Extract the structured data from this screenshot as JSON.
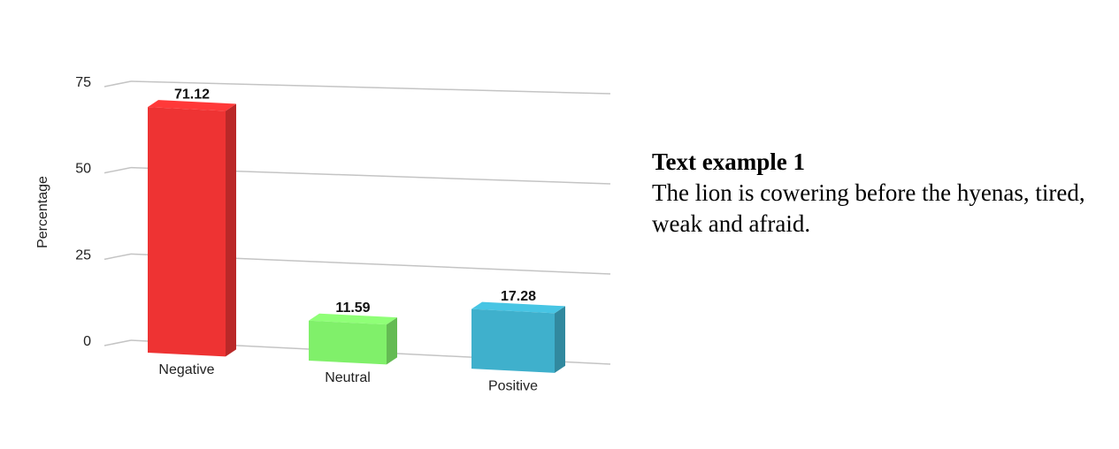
{
  "chart_data": {
    "type": "bar",
    "categories": [
      "Negative",
      "Neutral",
      "Positive"
    ],
    "values": [
      71.12,
      11.59,
      17.28
    ],
    "value_labels": [
      "71.12",
      "11.59",
      "17.28"
    ],
    "colors": [
      "#ee3333",
      "#80f06a",
      "#3fb0cc"
    ],
    "ylabel": "Percentage",
    "yticks": [
      0,
      25,
      50,
      75
    ],
    "ylim": [
      0,
      75
    ],
    "grid": true
  },
  "text_example": {
    "heading": "Text example 1",
    "body": "The lion is cowering before the hyenas, tired, weak and afraid."
  }
}
